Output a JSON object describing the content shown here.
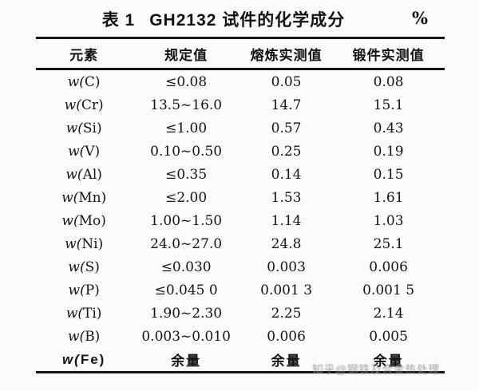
{
  "title": {
    "prefix": "表 1",
    "text": "GH2132 试件的化学成分",
    "unit": "%"
  },
  "table": {
    "headers": [
      "元素",
      "规定值",
      "熔炼实测值",
      "锻件实测值"
    ],
    "rows": [
      [
        "w(C)",
        "≤0.08",
        "0.05",
        "0.08"
      ],
      [
        "w(Cr)",
        "13.5~16.0",
        "14.7",
        "15.1"
      ],
      [
        "w(Si)",
        "≤1.00",
        "0.57",
        "0.43"
      ],
      [
        "w(V)",
        "0.10~0.50",
        "0.25",
        "0.19"
      ],
      [
        "w(Al)",
        "≤0.35",
        "0.14",
        "0.15"
      ],
      [
        "w(Mn)",
        "≤2.00",
        "1.53",
        "1.61"
      ],
      [
        "w(Mo)",
        "1.00~1.50",
        "1.14",
        "1.03"
      ],
      [
        "w(Ni)",
        "24.0~27.0",
        "24.8",
        "25.1"
      ],
      [
        "w(S)",
        "≤0.030",
        "0.003",
        "0.006"
      ],
      [
        "w(P)",
        "≤0.045 0",
        "0.001 3",
        "0.001 5"
      ],
      [
        "w(Ti)",
        "1.90~2.30",
        "2.25",
        "2.14"
      ],
      [
        "w(B)",
        "0.003~0.010",
        "0.006",
        "0.005"
      ],
      [
        "w(Fe)",
        "余量",
        "余量",
        "余量"
      ]
    ]
  },
  "watermark": "知乎@钢铁及合金热处理"
}
